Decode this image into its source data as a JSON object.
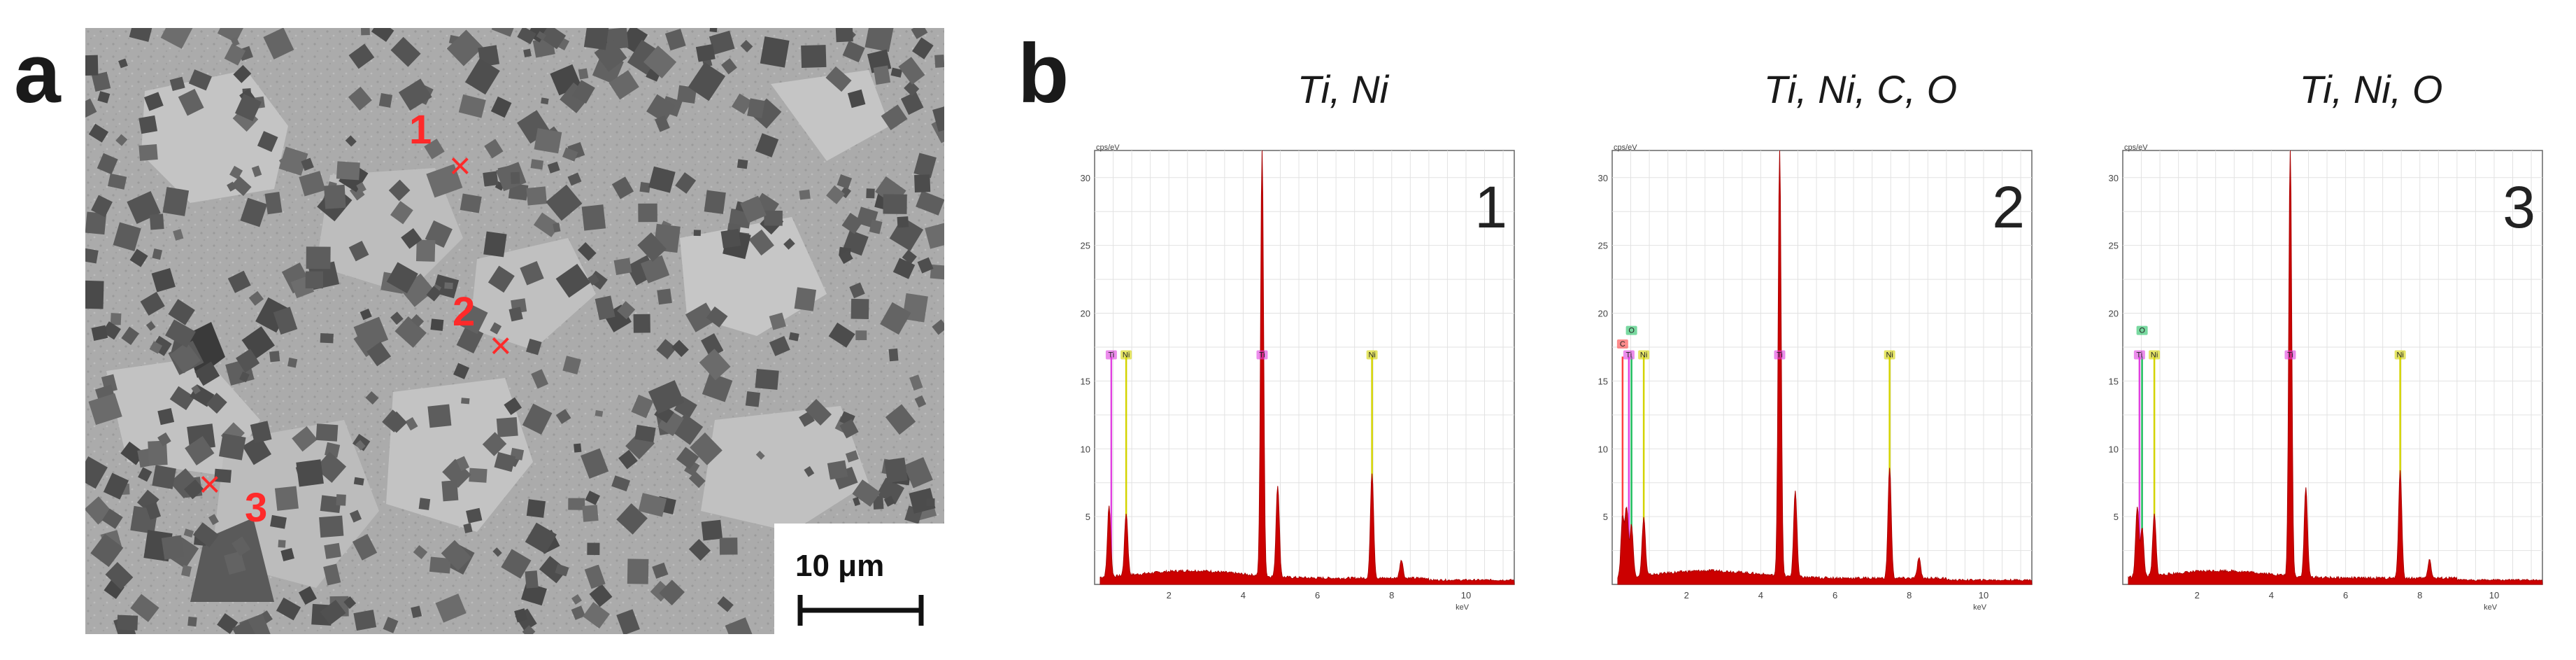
{
  "figure": {
    "panel_a_letter": "a",
    "panel_b_letter": "b"
  },
  "sem_image": {
    "points": [
      {
        "label": "1",
        "marker": "×"
      },
      {
        "label": "2",
        "marker": "×"
      },
      {
        "label": "3",
        "marker": "×"
      }
    ],
    "scale_bar_label": "10 μm",
    "colors": {
      "marker": "#ff2a2a",
      "matrix": "#b0b0b0",
      "particles": "#5e5e5e"
    }
  },
  "chart_data": [
    {
      "type": "line",
      "title": "Ti, Ni",
      "panel_number": "1",
      "ylabel": "cps/eV",
      "xlabel": "keV",
      "ylim": [
        0,
        32
      ],
      "xlim": [
        0,
        11.3
      ],
      "x_ticks": [
        "2",
        "4",
        "6",
        "8",
        "10"
      ],
      "y_ticks": [
        "5",
        "10",
        "15",
        "20",
        "25",
        "30"
      ],
      "series": [
        {
          "name": "spectrum",
          "color": "#cc0000",
          "peaks": [
            [
              0.39,
              5.2
            ],
            [
              0.85,
              4.6
            ],
            [
              4.51,
              32
            ],
            [
              4.93,
              6.8
            ],
            [
              7.47,
              7.8
            ],
            [
              8.26,
              1.4
            ]
          ]
        }
      ],
      "element_markers": [
        {
          "element": "Ti",
          "x": 0.45,
          "color": "#e040e0"
        },
        {
          "element": "Ni",
          "x": 0.85,
          "color": "#d4d400"
        },
        {
          "element": "Ti",
          "x": 4.51,
          "color": "#e040e0"
        },
        {
          "element": "Ni",
          "x": 7.47,
          "color": "#d4d400"
        }
      ]
    },
    {
      "type": "line",
      "title": "Ti, Ni, C, O",
      "panel_number": "2",
      "ylabel": "cps/eV",
      "xlabel": "keV",
      "ylim": [
        0,
        32
      ],
      "xlim": [
        0,
        11.3
      ],
      "x_ticks": [
        "2",
        "4",
        "6",
        "8",
        "10"
      ],
      "y_ticks": [
        "5",
        "10",
        "15",
        "20",
        "25",
        "30"
      ],
      "series": [
        {
          "name": "spectrum",
          "color": "#cc0000",
          "peaks": [
            [
              0.28,
              4.4
            ],
            [
              0.39,
              5.0
            ],
            [
              0.52,
              3.8
            ],
            [
              0.85,
              4.3
            ],
            [
              4.51,
              32
            ],
            [
              4.93,
              6.4
            ],
            [
              7.47,
              8.2
            ],
            [
              8.26,
              1.5
            ]
          ]
        }
      ],
      "element_markers": [
        {
          "element": "C",
          "x": 0.28,
          "color": "#ff4040"
        },
        {
          "element": "O",
          "x": 0.52,
          "color": "#20c060"
        },
        {
          "element": "Ti",
          "x": 0.45,
          "color": "#e040e0"
        },
        {
          "element": "Ni",
          "x": 0.85,
          "color": "#d4d400"
        },
        {
          "element": "Ti",
          "x": 4.51,
          "color": "#e040e0"
        },
        {
          "element": "Ni",
          "x": 7.47,
          "color": "#d4d400"
        }
      ]
    },
    {
      "type": "line",
      "title": "Ti, Ni, O",
      "panel_number": "3",
      "ylabel": "cps/eV",
      "xlabel": "keV",
      "ylim": [
        0,
        32
      ],
      "xlim": [
        0,
        11.3
      ],
      "x_ticks": [
        "2",
        "4",
        "6",
        "8",
        "10"
      ],
      "y_ticks": [
        "5",
        "10",
        "15",
        "20",
        "25",
        "30"
      ],
      "series": [
        {
          "name": "spectrum",
          "color": "#cc0000",
          "peaks": [
            [
              0.39,
              5.1
            ],
            [
              0.52,
              3.6
            ],
            [
              0.85,
              4.5
            ],
            [
              4.51,
              32
            ],
            [
              4.93,
              6.6
            ],
            [
              7.47,
              8.0
            ],
            [
              8.26,
              1.4
            ]
          ]
        }
      ],
      "element_markers": [
        {
          "element": "O",
          "x": 0.52,
          "color": "#20c060"
        },
        {
          "element": "Ti",
          "x": 0.45,
          "color": "#e040e0"
        },
        {
          "element": "Ni",
          "x": 0.85,
          "color": "#d4d400"
        },
        {
          "element": "Ti",
          "x": 4.51,
          "color": "#e040e0"
        },
        {
          "element": "Ni",
          "x": 7.47,
          "color": "#d4d400"
        }
      ]
    }
  ]
}
